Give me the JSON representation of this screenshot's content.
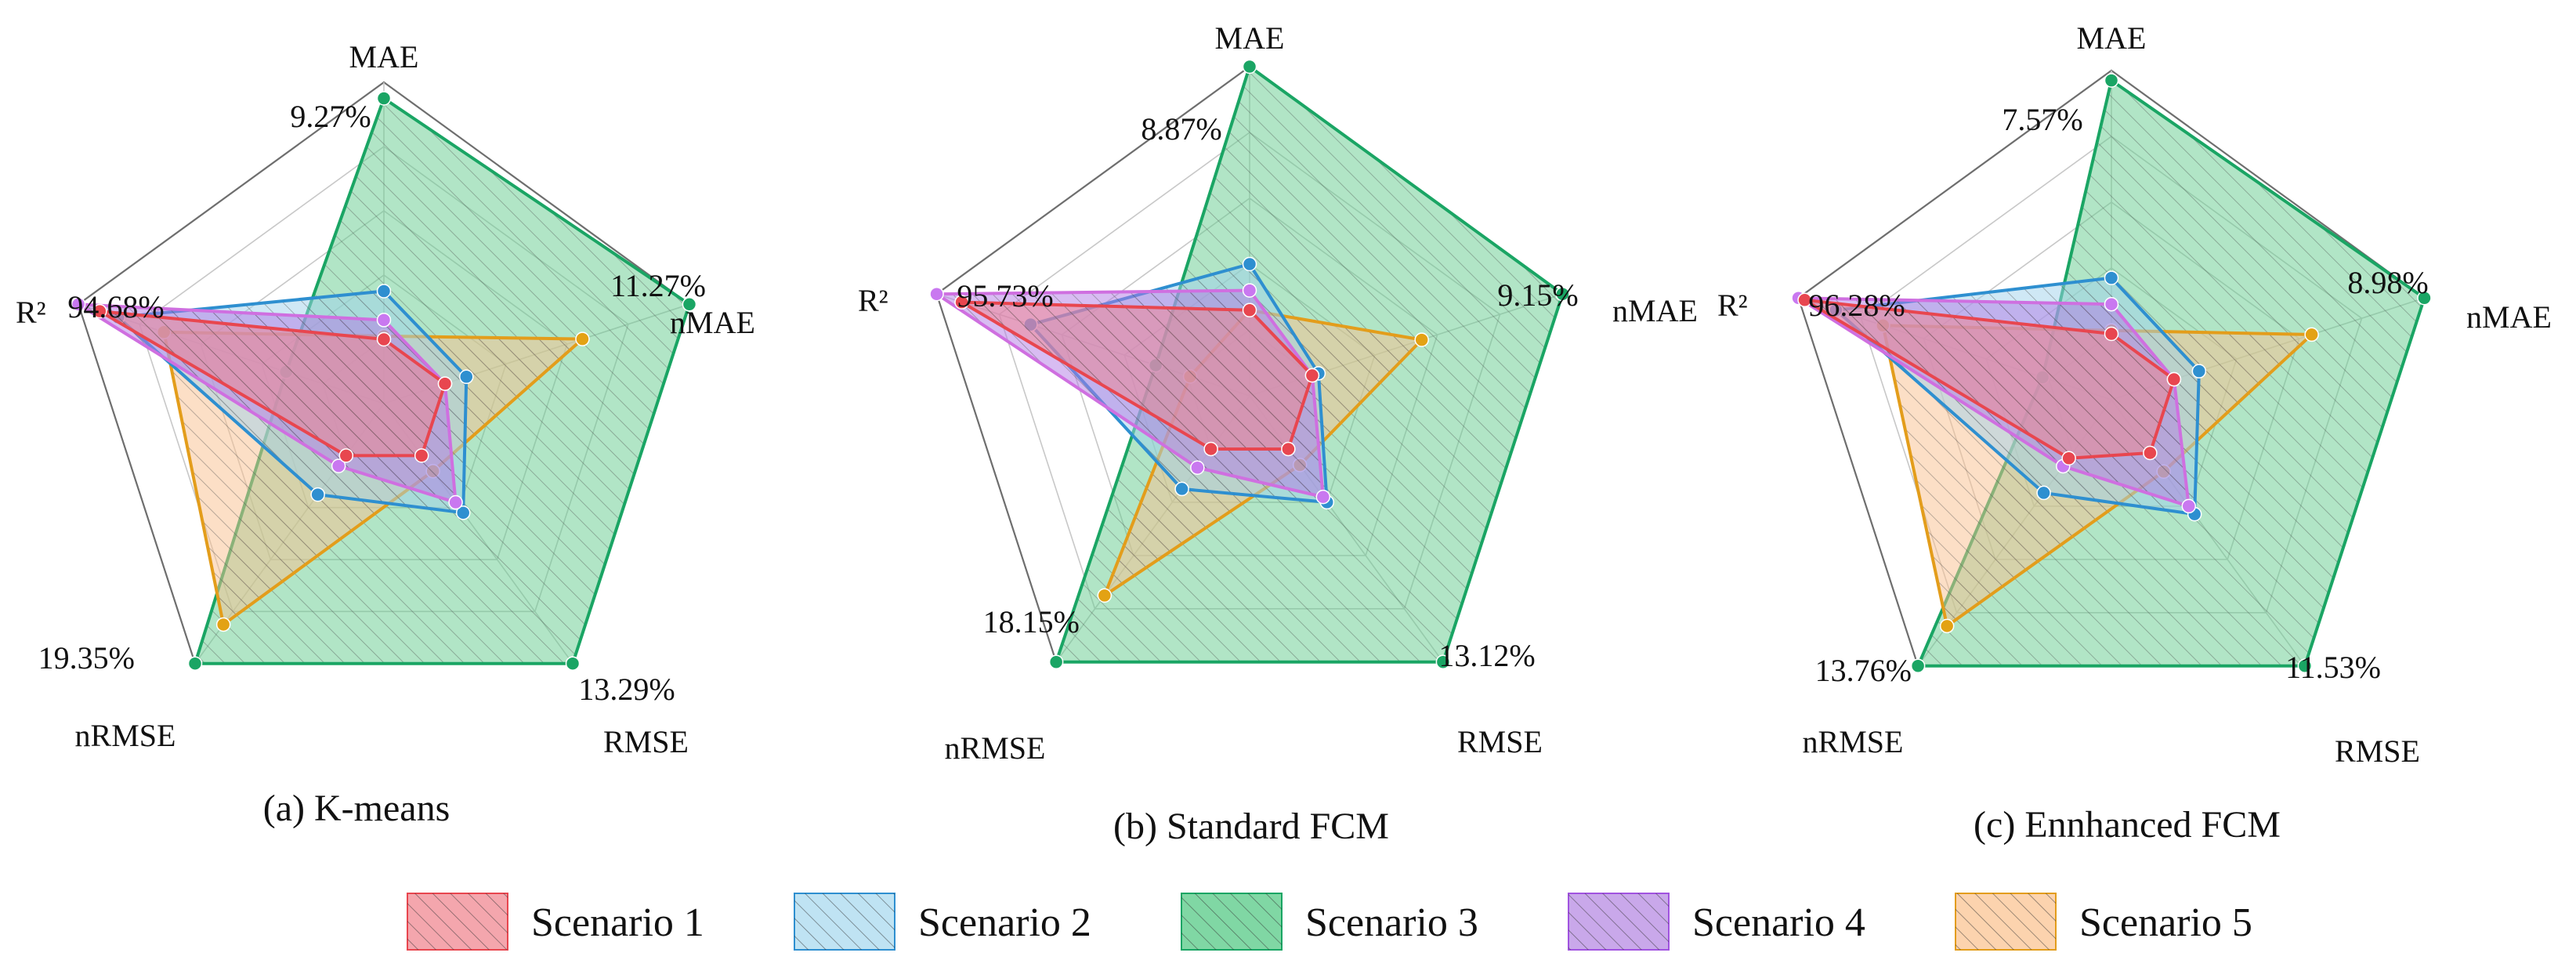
{
  "chart_data": [
    {
      "type": "radar",
      "caption": "(a)  K-means",
      "axes": [
        "MAE",
        "nMAE",
        "RMSE",
        "nRMSE",
        "R²"
      ],
      "axis_max_labels": [
        "9.27%",
        "11.27%",
        "13.29%",
        "19.35%",
        "94.68%"
      ],
      "series": [
        {
          "values": [
            0.2,
            0.2,
            0.2,
            0.2,
            0.93
          ]
        },
        {
          "values": [
            0.35,
            0.27,
            0.42,
            0.35,
            0.87
          ]
        },
        {
          "values": [
            0.95,
            1.0,
            1.0,
            1.0,
            0.32
          ]
        },
        {
          "values": [
            0.26,
            0.2,
            0.38,
            0.24,
            1.0
          ]
        },
        {
          "values": [
            0.21,
            0.65,
            0.26,
            0.85,
            0.72
          ]
        }
      ]
    },
    {
      "type": "radar",
      "caption": "(b) Standard FCM",
      "axes": [
        "MAE",
        "nMAE",
        "RMSE",
        "nRMSE",
        "R²"
      ],
      "axis_max_labels": [
        "8.87%",
        "9.15%",
        "13.12%",
        "18.15%",
        "95.73%"
      ],
      "series": [
        {
          "values": [
            0.26,
            0.2,
            0.2,
            0.2,
            0.92
          ]
        },
        {
          "values": [
            0.4,
            0.22,
            0.4,
            0.35,
            0.7
          ]
        },
        {
          "values": [
            1.0,
            1.0,
            1.0,
            1.0,
            0.3
          ]
        },
        {
          "values": [
            0.32,
            0.2,
            0.38,
            0.27,
            1.0
          ]
        },
        {
          "values": [
            0.26,
            0.55,
            0.26,
            0.75,
            0.19
          ]
        }
      ]
    },
    {
      "type": "radar",
      "caption": "(c) Ennhanced FCM",
      "axes": [
        "MAE",
        "nMAE",
        "RMSE",
        "nRMSE",
        "R²"
      ],
      "axis_max_labels": [
        "7.57%",
        "8.98%",
        "11.53%",
        "13.76%",
        "96.28%"
      ],
      "series": [
        {
          "values": [
            0.2,
            0.2,
            0.2,
            0.22,
            0.98
          ]
        },
        {
          "values": [
            0.37,
            0.28,
            0.43,
            0.35,
            0.88
          ]
        },
        {
          "values": [
            0.97,
            1.0,
            1.0,
            1.0,
            0.22
          ]
        },
        {
          "values": [
            0.29,
            0.2,
            0.4,
            0.25,
            1.0
          ]
        },
        {
          "values": [
            0.21,
            0.64,
            0.27,
            0.85,
            0.73
          ]
        }
      ]
    }
  ],
  "legend": {
    "items": [
      {
        "label": "Scenario  1",
        "fill": "#f4a6ad",
        "stroke": "#e8464f"
      },
      {
        "label": "Scenario  2",
        "fill": "#bfe3f3",
        "stroke": "#2e8fd0"
      },
      {
        "label": "Scenario  3",
        "fill": "#80d7a4",
        "stroke": "#1aa564"
      },
      {
        "label": "Scenario  4",
        "fill": "#c9a8ea",
        "stroke": "#a153e0"
      },
      {
        "label": "Scenario  5",
        "fill": "#fcd3ae",
        "stroke": "#e39d1b"
      }
    ]
  },
  "series_fill_colors": [
    "#f2848c",
    "#9fd2ec",
    "#63cc8e",
    "#b27ae6",
    "#f9c08e"
  ],
  "series_line_colors": [
    "#e8464f",
    "#2e8fd0",
    "#1aa564",
    "#cf6fe0",
    "#e39d1b"
  ],
  "series_marker_colors": [
    "#e8464f",
    "#2e8fd0",
    "#1aa564",
    "#c978f0",
    "#e3a214"
  ]
}
